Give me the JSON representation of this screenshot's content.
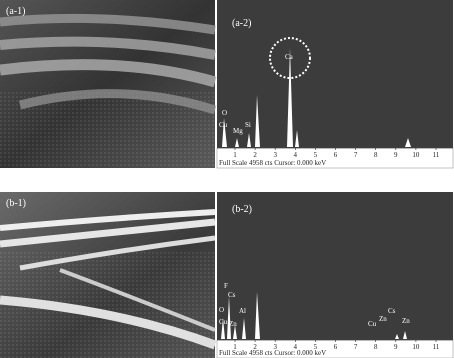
{
  "panels": [
    {
      "label": "(a-1)"
    },
    {
      "label": "(a-2)",
      "peak_labels": [
        "O",
        "Cu",
        "Mg",
        "Si",
        "Ca"
      ],
      "x_ticks": [
        1,
        2,
        3,
        4,
        5,
        6,
        7,
        8,
        9,
        10,
        11
      ],
      "footer": "Full Scale 4958 cts  Cursor: 0.000 keV"
    },
    {
      "label": "(b-1)"
    },
    {
      "label": "(b-2)",
      "peak_labels": [
        "F",
        "Cs",
        "O",
        "Al",
        "Cu",
        "Zn",
        "Cu",
        "Zn",
        "Cs",
        "Zn"
      ],
      "x_ticks": [
        1,
        2,
        3,
        4,
        5,
        6,
        7,
        8,
        9,
        10,
        11
      ],
      "footer": "Full Scale 4958 cts  Cursor: 0.000 keV"
    }
  ]
}
